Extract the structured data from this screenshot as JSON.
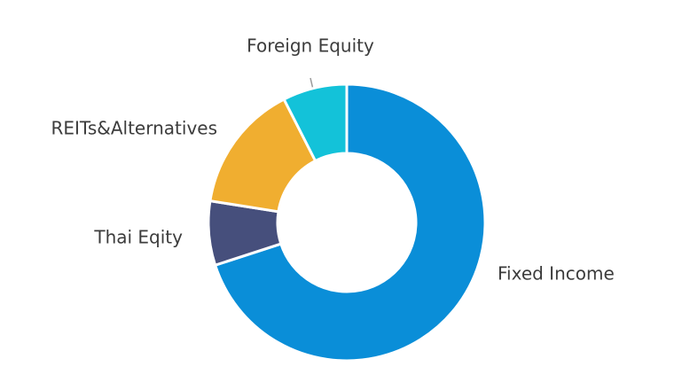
{
  "chart_data": {
    "type": "donut",
    "categories": [
      "Fixed Income",
      "Thai Eqity",
      "REITs&Alternatives",
      "Foreign Equity"
    ],
    "values": [
      70,
      7.5,
      15,
      7.5
    ],
    "colors": [
      "#0a8ed8",
      "#464f7c",
      "#f0ae30",
      "#13c2d9"
    ]
  }
}
